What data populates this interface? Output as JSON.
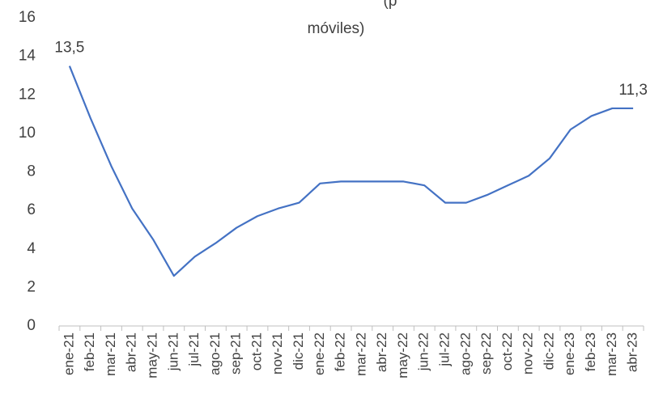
{
  "chart_data": {
    "type": "line",
    "title": [
      "(p",
      "móviles)"
    ],
    "categories": [
      "ene-21",
      "feb-21",
      "mar-21",
      "abr-21",
      "may-21",
      "jun-21",
      "jul-21",
      "ago-21",
      "sep-21",
      "oct-21",
      "nov-21",
      "dic-21",
      "ene-22",
      "feb-22",
      "mar-22",
      "abr-22",
      "may-22",
      "jun-22",
      "jul-22",
      "ago-22",
      "sep-22",
      "oct-22",
      "nov-22",
      "dic-22",
      "ene-23",
      "feb-23",
      "mar-23",
      "abr-23"
    ],
    "series": [
      {
        "color": "#4472c4",
        "values": [
          13.5,
          10.8,
          8.3,
          6.1,
          4.5,
          2.6,
          3.6,
          4.3,
          5.1,
          5.7,
          6.1,
          6.4,
          7.4,
          7.5,
          7.5,
          7.5,
          7.5,
          7.3,
          6.4,
          6.4,
          6.8,
          7.3,
          7.8,
          8.7,
          10.2,
          10.9,
          11.3,
          11.3
        ],
        "value_labels": [
          "13,5",
          null,
          null,
          null,
          null,
          null,
          null,
          null,
          null,
          null,
          null,
          null,
          null,
          null,
          null,
          null,
          null,
          null,
          null,
          null,
          null,
          null,
          null,
          null,
          null,
          null,
          null,
          "11,3"
        ]
      }
    ],
    "ylim": [
      0,
      16
    ],
    "yticks": [
      0,
      2,
      4,
      6,
      8,
      10,
      12,
      14,
      16
    ]
  }
}
